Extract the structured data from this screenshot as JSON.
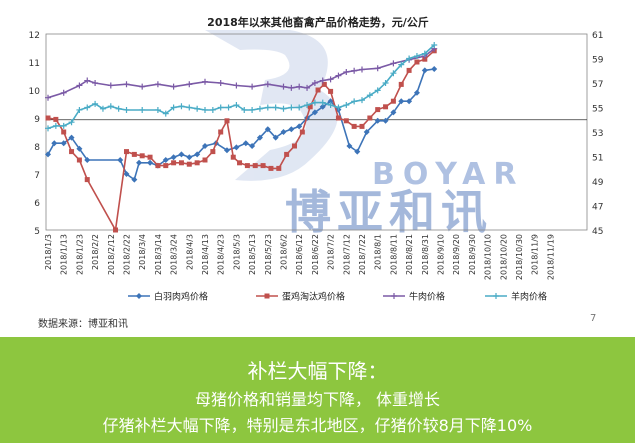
{
  "source_text": "数据来源：博亚和讯",
  "page_number": "7",
  "watermark": {
    "brand_en": "BOYAR",
    "brand_cn": "博亚和讯",
    "color": "#5b7fbe"
  },
  "banner": {
    "title": "补栏大幅下降：",
    "line1": "母猪价格和销量均下降，  体重增长",
    "line2": "仔猪补栏大幅下降，特别是东北地区，仔猪价较8月下降10%",
    "color": "#8dc63f"
  },
  "chart_data": {
    "type": "line",
    "title": "2018年以来其他畜禽产品价格走势，元/公斤",
    "x_labels": [
      "2018/1/3",
      "2018/1/13",
      "2018/1/23",
      "2018/2/2",
      "2018/2/12",
      "2018/2/22",
      "2018/3/4",
      "2018/3/14",
      "2018/3/24",
      "2018/4/3",
      "2018/4/13",
      "2018/4/23",
      "2018/5/3",
      "2018/5/13",
      "2018/5/23",
      "2018/6/2",
      "2018/6/12",
      "2018/6/22",
      "2018/7/2",
      "2018/7/12",
      "2018/7/22",
      "2018/8/1",
      "2018/8/11",
      "2018/8/21",
      "2018/8/31",
      "2018/9/10",
      "2018/9/20",
      "2018/9/30",
      "2018/10/10",
      "2018/10/20",
      "2018/10/30",
      "2018/11/9",
      "2018/11/19"
    ],
    "y_left": {
      "min": 5,
      "max": 12,
      "ticks": [
        5,
        6,
        7,
        8,
        9,
        10,
        11,
        12
      ]
    },
    "y_right": {
      "min": 45,
      "max": 61,
      "ticks": [
        45,
        47,
        49,
        51,
        53,
        55,
        57,
        59,
        61
      ]
    },
    "reference_line_right": 54,
    "series": [
      {
        "name": "白羽肉鸡价格",
        "axis": "left",
        "color": "#3d74b8",
        "marker": "diamond",
        "points": [
          [
            0,
            7.7
          ],
          [
            0.4,
            8.1
          ],
          [
            1,
            8.1
          ],
          [
            1.5,
            8.3
          ],
          [
            2,
            7.9
          ],
          [
            2.5,
            7.5
          ],
          [
            4.6,
            7.5
          ],
          [
            5,
            7.0
          ],
          [
            5.5,
            6.8
          ],
          [
            5.8,
            7.4
          ],
          [
            6.5,
            7.4
          ],
          [
            7,
            7.3
          ],
          [
            7.5,
            7.5
          ],
          [
            8,
            7.6
          ],
          [
            8.5,
            7.7
          ],
          [
            9,
            7.6
          ],
          [
            9.5,
            7.7
          ],
          [
            10,
            8.0
          ],
          [
            10.7,
            8.1
          ],
          [
            11.4,
            7.85
          ],
          [
            12,
            7.95
          ],
          [
            12.6,
            8.1
          ],
          [
            13,
            8.0
          ],
          [
            13.5,
            8.3
          ],
          [
            14,
            8.6
          ],
          [
            14.5,
            8.3
          ],
          [
            15,
            8.5
          ],
          [
            15.5,
            8.6
          ],
          [
            16,
            8.7
          ],
          [
            16.5,
            9.0
          ],
          [
            17,
            9.2
          ],
          [
            17.5,
            9.4
          ],
          [
            18,
            9.6
          ],
          [
            18.5,
            9.3
          ],
          [
            19.2,
            8.0
          ],
          [
            19.7,
            7.8
          ],
          [
            20.3,
            8.5
          ],
          [
            21,
            8.9
          ],
          [
            21.5,
            8.9
          ],
          [
            22,
            9.2
          ],
          [
            22.5,
            9.6
          ],
          [
            23,
            9.6
          ],
          [
            23.5,
            9.9
          ],
          [
            24,
            10.7
          ],
          [
            24.6,
            10.75
          ]
        ]
      },
      {
        "name": "蛋鸡淘汰鸡价格",
        "axis": "left",
        "color": "#c0504d",
        "marker": "square",
        "points": [
          [
            0,
            9.0
          ],
          [
            0.5,
            8.95
          ],
          [
            1,
            8.5
          ],
          [
            1.5,
            7.8
          ],
          [
            2,
            7.5
          ],
          [
            2.5,
            6.8
          ],
          [
            4.3,
            5.0
          ],
          [
            5,
            7.8
          ],
          [
            5.5,
            7.7
          ],
          [
            6,
            7.65
          ],
          [
            6.5,
            7.6
          ],
          [
            7,
            7.3
          ],
          [
            7.5,
            7.3
          ],
          [
            8,
            7.4
          ],
          [
            8.5,
            7.4
          ],
          [
            9,
            7.35
          ],
          [
            9.5,
            7.4
          ],
          [
            10,
            7.5
          ],
          [
            10.5,
            7.8
          ],
          [
            11,
            8.5
          ],
          [
            11.4,
            8.9
          ],
          [
            11.8,
            7.6
          ],
          [
            12.2,
            7.4
          ],
          [
            12.7,
            7.3
          ],
          [
            13.2,
            7.3
          ],
          [
            13.7,
            7.3
          ],
          [
            14.2,
            7.2
          ],
          [
            14.7,
            7.2
          ],
          [
            15.2,
            7.7
          ],
          [
            15.7,
            8.0
          ],
          [
            16.2,
            8.5
          ],
          [
            16.7,
            9.4
          ],
          [
            17.2,
            10.0
          ],
          [
            17.6,
            10.2
          ],
          [
            18,
            9.95
          ],
          [
            18.5,
            9.0
          ],
          [
            19,
            8.9
          ],
          [
            19.5,
            8.7
          ],
          [
            20,
            8.7
          ],
          [
            20.5,
            9.0
          ],
          [
            21,
            9.3
          ],
          [
            21.5,
            9.4
          ],
          [
            22,
            9.6
          ],
          [
            22.5,
            10.2
          ],
          [
            23,
            10.7
          ],
          [
            23.5,
            11.0
          ],
          [
            24,
            11.1
          ],
          [
            24.6,
            11.4
          ]
        ]
      },
      {
        "name": "牛肉价格",
        "axis": "right",
        "color": "#7b5aa6",
        "marker": "star",
        "points": [
          [
            0,
            55.8
          ],
          [
            1,
            56.2
          ],
          [
            2,
            56.8
          ],
          [
            2.5,
            57.2
          ],
          [
            3,
            57.0
          ],
          [
            4,
            56.8
          ],
          [
            5,
            56.9
          ],
          [
            6,
            56.7
          ],
          [
            7,
            56.9
          ],
          [
            8,
            56.7
          ],
          [
            9,
            56.9
          ],
          [
            10,
            57.1
          ],
          [
            11,
            57.0
          ],
          [
            12,
            56.8
          ],
          [
            13,
            56.7
          ],
          [
            14,
            56.9
          ],
          [
            15,
            56.7
          ],
          [
            15.5,
            56.6
          ],
          [
            16,
            56.7
          ],
          [
            16.5,
            56.6
          ],
          [
            17,
            57.0
          ],
          [
            17.5,
            57.2
          ],
          [
            18,
            57.3
          ],
          [
            18.5,
            57.6
          ],
          [
            19,
            57.9
          ],
          [
            19.5,
            58.0
          ],
          [
            20,
            58.1
          ],
          [
            21,
            58.2
          ],
          [
            22,
            58.6
          ],
          [
            23,
            58.9
          ],
          [
            24,
            59.2
          ],
          [
            24.6,
            59.8
          ]
        ]
      },
      {
        "name": "羊肉价格",
        "axis": "right",
        "color": "#4aacc6",
        "marker": "star",
        "points": [
          [
            0,
            53.3
          ],
          [
            0.5,
            53.5
          ],
          [
            1,
            53.5
          ],
          [
            1.5,
            53.8
          ],
          [
            2,
            54.8
          ],
          [
            2.5,
            55.0
          ],
          [
            3,
            55.3
          ],
          [
            3.5,
            54.9
          ],
          [
            4,
            55.1
          ],
          [
            4.5,
            54.9
          ],
          [
            5,
            54.8
          ],
          [
            6,
            54.8
          ],
          [
            7,
            54.8
          ],
          [
            7.5,
            54.5
          ],
          [
            8,
            55.0
          ],
          [
            8.5,
            55.1
          ],
          [
            9,
            55.0
          ],
          [
            9.5,
            54.9
          ],
          [
            10,
            54.8
          ],
          [
            10.5,
            54.8
          ],
          [
            11,
            55.0
          ],
          [
            11.5,
            55.0
          ],
          [
            12,
            55.2
          ],
          [
            12.5,
            54.8
          ],
          [
            13,
            54.8
          ],
          [
            13.5,
            54.9
          ],
          [
            14,
            55.0
          ],
          [
            14.5,
            55.0
          ],
          [
            15,
            54.9
          ],
          [
            15.5,
            55.0
          ],
          [
            16,
            55.0
          ],
          [
            16.5,
            55.2
          ],
          [
            17,
            55.4
          ],
          [
            17.5,
            55.4
          ],
          [
            18,
            55.2
          ],
          [
            18.5,
            55.0
          ],
          [
            19,
            55.2
          ],
          [
            19.5,
            55.5
          ],
          [
            20,
            55.6
          ],
          [
            20.5,
            56.0
          ],
          [
            21,
            56.4
          ],
          [
            21.5,
            57.0
          ],
          [
            22,
            57.8
          ],
          [
            22.5,
            58.5
          ],
          [
            23,
            59.0
          ],
          [
            23.5,
            59.2
          ],
          [
            24,
            59.4
          ],
          [
            24.6,
            60.1
          ]
        ]
      }
    ],
    "legend_position": "bottom",
    "grid": false
  }
}
